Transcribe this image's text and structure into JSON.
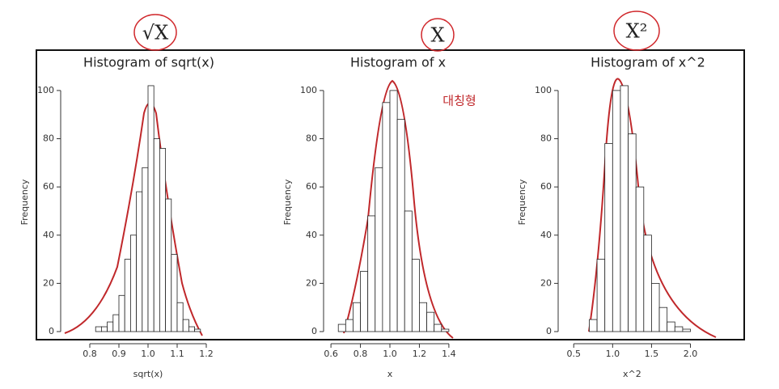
{
  "chart_data": [
    {
      "type": "histogram",
      "title": "Histogram of sqrt(x)",
      "x_label": "sqrt(x)",
      "y_label": "Frequency",
      "annotations": [
        "√X"
      ],
      "bins": [
        0.82,
        0.84,
        0.86,
        0.88,
        0.9,
        0.92,
        0.94,
        0.96,
        0.98,
        1.0,
        1.02,
        1.04,
        1.06,
        1.08,
        1.1,
        1.12,
        1.14,
        1.16,
        1.18
      ],
      "values": [
        2,
        2,
        4,
        7,
        15,
        30,
        40,
        58,
        68,
        102,
        80,
        76,
        55,
        32,
        12,
        5,
        2,
        1
      ],
      "color": "#ffffff",
      "xlim": [
        0.7,
        1.25
      ],
      "xticks": [
        0.8,
        0.9,
        {
          "value": 1,
          "label": "1.0"
        },
        1.1,
        1.2
      ],
      "ylim": [
        0,
        105
      ],
      "yticks": [
        0,
        20,
        40,
        60,
        80,
        100
      ]
    },
    {
      "type": "histogram",
      "title": "Histogram of x",
      "x_label": "x",
      "y_label": "Frequency",
      "annotations": [
        "X",
        "대칭형"
      ],
      "bins": [
        0.65,
        0.7,
        0.75,
        0.8,
        0.85,
        0.9,
        0.95,
        1.0,
        1.05,
        1.1,
        1.15,
        1.2,
        1.25,
        1.3,
        1.35,
        1.4
      ],
      "values": [
        3,
        5,
        12,
        25,
        48,
        68,
        95,
        100,
        88,
        50,
        30,
        12,
        8,
        3,
        1
      ],
      "color": "#ffffff",
      "xlim": [
        0.55,
        1.45
      ],
      "xticks": [
        0.6,
        0.8,
        {
          "value": 1,
          "label": "1.0"
        },
        1.2,
        1.4
      ],
      "ylim": [
        0,
        105
      ],
      "yticks": [
        0,
        20,
        40,
        60,
        80,
        100
      ]
    },
    {
      "type": "histogram",
      "title": "Histogram of x^2",
      "x_label": "x^2",
      "y_label": "Frequency",
      "annotations": [
        "X²"
      ],
      "bins": [
        0.7,
        0.8,
        0.9,
        1.0,
        1.1,
        1.2,
        1.3,
        1.4,
        1.5,
        1.6,
        1.7,
        1.8,
        1.9,
        2.0
      ],
      "values": [
        5,
        30,
        78,
        100,
        102,
        82,
        60,
        40,
        20,
        10,
        4,
        2,
        1
      ],
      "color": "#ffffff",
      "xlim": [
        0.3,
        2.4
      ],
      "xticks": [
        0.5,
        {
          "value": 1,
          "label": "1.0"
        },
        1.5,
        {
          "value": 2,
          "label": "2.0"
        }
      ],
      "ylim": [
        0,
        105
      ],
      "yticks": [
        0,
        20,
        40,
        60,
        80,
        100
      ]
    }
  ]
}
